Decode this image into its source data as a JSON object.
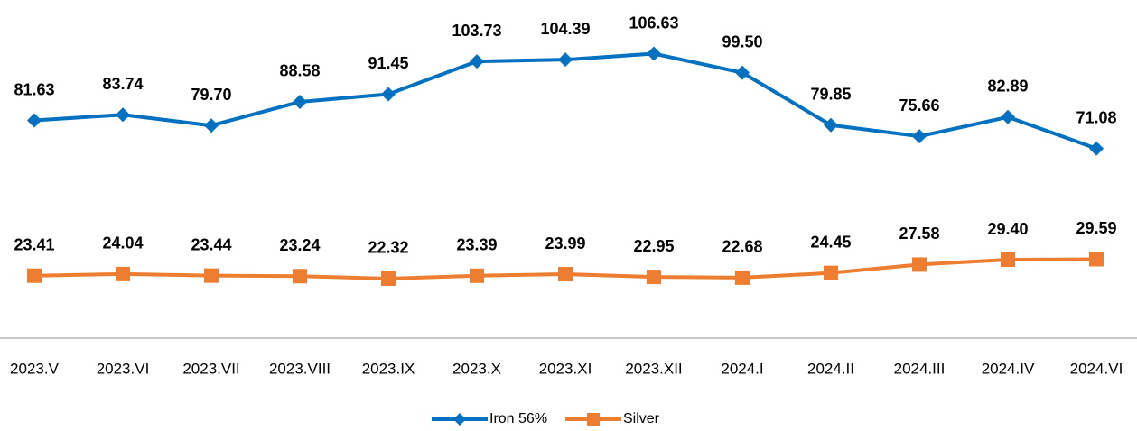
{
  "chart_data": {
    "type": "line",
    "categories": [
      "2023.V",
      "2023.VI",
      "2023.VII",
      "2023.VIII",
      "2023.IX",
      "2023.X",
      "2023.XI",
      "2023.XII",
      "2024.I",
      "2024.II",
      "2024.III",
      "2024.IV",
      "2024.VI"
    ],
    "series": [
      {
        "name": "Iron 56%",
        "color": "#0070c0",
        "marker": "diamond",
        "values": [
          81.63,
          83.74,
          79.7,
          88.58,
          91.45,
          103.73,
          104.39,
          106.63,
          99.5,
          79.85,
          75.66,
          82.89,
          71.08
        ],
        "value_labels": [
          "81.63",
          "83.74",
          "79.70",
          "88.58",
          "91.45",
          "103.73",
          "104.39",
          "106.63",
          "99.50",
          "79.85",
          "75.66",
          "82.89",
          "71.08"
        ]
      },
      {
        "name": "Silver",
        "color": "#ed7d31",
        "marker": "square",
        "values": [
          23.41,
          24.04,
          23.44,
          23.24,
          22.32,
          23.39,
          23.99,
          22.95,
          22.68,
          24.45,
          27.58,
          29.4,
          29.59
        ],
        "value_labels": [
          "23.41",
          "24.04",
          "23.44",
          "23.24",
          "22.32",
          "23.39",
          "23.99",
          "22.95",
          "22.68",
          "24.45",
          "27.58",
          "29.40",
          "29.59"
        ]
      }
    ],
    "ylim": [
      0,
      120
    ],
    "legend": "bottom"
  }
}
